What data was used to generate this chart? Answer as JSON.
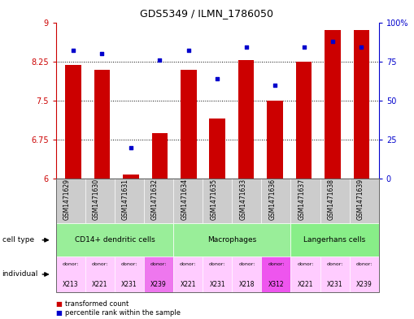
{
  "title": "GDS5349 / ILMN_1786050",
  "samples": [
    "GSM1471629",
    "GSM1471630",
    "GSM1471631",
    "GSM1471632",
    "GSM1471634",
    "GSM1471635",
    "GSM1471633",
    "GSM1471636",
    "GSM1471637",
    "GSM1471638",
    "GSM1471639"
  ],
  "red_values": [
    8.18,
    8.09,
    6.08,
    6.88,
    8.09,
    7.16,
    8.27,
    7.49,
    8.25,
    8.85,
    8.85
  ],
  "blue_values": [
    82,
    80,
    20,
    76,
    82,
    64,
    84,
    60,
    84,
    88,
    84
  ],
  "ylim_left": [
    6,
    9
  ],
  "ylim_right": [
    0,
    100
  ],
  "yticks_left": [
    6,
    6.75,
    7.5,
    8.25,
    9
  ],
  "yticks_right": [
    0,
    25,
    50,
    75,
    100
  ],
  "ytick_labels_left": [
    "6",
    "6.75",
    "7.5",
    "8.25",
    "9"
  ],
  "ytick_labels_right": [
    "0",
    "25",
    "50",
    "75",
    "100%"
  ],
  "left_axis_color": "#cc0000",
  "right_axis_color": "#0000cc",
  "bar_color": "#cc0000",
  "dot_color": "#0000cc",
  "cell_type_groups": [
    {
      "label": "CD14+ dendritic cells",
      "cols": [
        0,
        1,
        2,
        3
      ],
      "color": "#99ee99"
    },
    {
      "label": "Macrophages",
      "cols": [
        4,
        5,
        6,
        7
      ],
      "color": "#99ee99"
    },
    {
      "label": "Langerhans cells",
      "cols": [
        8,
        9,
        10
      ],
      "color": "#88ee88"
    }
  ],
  "individuals": [
    {
      "donor": "X213",
      "color": "#ffccff"
    },
    {
      "donor": "X221",
      "color": "#ffccff"
    },
    {
      "donor": "X231",
      "color": "#ffccff"
    },
    {
      "donor": "X239",
      "color": "#ee77ee"
    },
    {
      "donor": "X221",
      "color": "#ffccff"
    },
    {
      "donor": "X231",
      "color": "#ffccff"
    },
    {
      "donor": "X218",
      "color": "#ffccff"
    },
    {
      "donor": "X312",
      "color": "#ee55ee"
    },
    {
      "donor": "X221",
      "color": "#ffccff"
    },
    {
      "donor": "X231",
      "color": "#ffccff"
    },
    {
      "donor": "X239",
      "color": "#ffccff"
    }
  ],
  "bg_color": "#ffffff",
  "sample_bg_color": "#cccccc"
}
